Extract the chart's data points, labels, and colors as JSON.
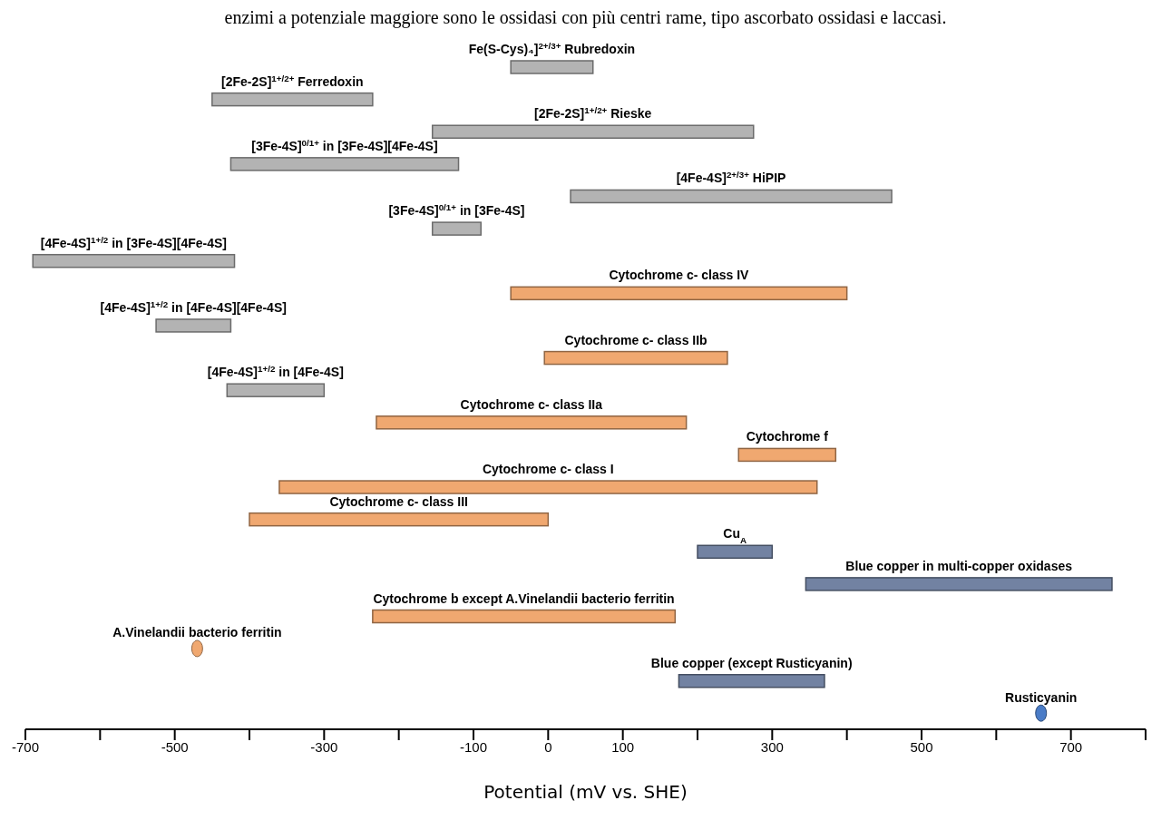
{
  "chart_data": {
    "type": "bar",
    "orientation": "horizontal",
    "xlabel": "Potential (mV vs. SHE)",
    "annotations": [
      "enzimi a potenziale maggiore sono le ossidasi con più centri rame, tipo ascorbato ossidasi e laccasi."
    ],
    "categories": [
      "Fe(S-Cys)₄]$^{2+/3+}$ Rubredoxin",
      "[2Fe-2S]$^{1+/2+}$ Ferredoxin",
      "[2Fe-2S]$^{1+/2+}$ Rieske",
      "[3Fe-4S]$^{0/1+}$ in [3Fe-4S][4Fe-4S]",
      "[4Fe-4S]$^{2+/3+}$ HiPIP",
      "[3Fe-4S]$^{0/1+}$ in [3Fe-4S]",
      "[4Fe-4S]$^{1+/2}$ in [3Fe-4S][4Fe-4S]",
      "Cytochrome c- class IV",
      "[4Fe-4S]$^{1+/2}$ in [4Fe-4S][4Fe-4S]",
      "Cytochrome c- class IIb",
      "[4Fe-4S]$^{1+/2}$ in [4Fe-4S]",
      "Cytochrome c- class IIa",
      "Cytochrome f",
      "Cytochrome c- class I",
      "Cytochrome c- class III",
      "Cu$_{A}$",
      "Blue copper in multi-copper oxidases",
      "Cytochrome b except A.Vinelandii bacterio ferritin",
      "A.Vinelandii bacterio ferritin",
      "Blue copper (except Rusticyanin)",
      "Rusticyanin"
    ],
    "series": [
      {
        "type": "bar",
        "base": [
          -50,
          -450,
          -155,
          -425,
          30,
          -155,
          -690,
          -50,
          -525,
          -5,
          -430,
          -230,
          255,
          -360,
          -400,
          200,
          345,
          -235,
          null,
          175,
          null
        ],
        "values": [
          110,
          215,
          430,
          305,
          430,
          65,
          270,
          450,
          100,
          245,
          130,
          415,
          130,
          720,
          400,
          100,
          410,
          405,
          null,
          195,
          null
        ],
        "colors": [
          "#b3b3b3",
          "#b3b3b3",
          "#b3b3b3",
          "#b3b3b3",
          "#b3b3b3",
          "#b3b3b3",
          "#b3b3b3",
          "#f0a870",
          "#b3b3b3",
          "#f0a870",
          "#b3b3b3",
          "#f0a870",
          "#f0a870",
          "#f0a870",
          "#f0a870",
          "#7282a2",
          "#7282a2",
          "#f0a870",
          null,
          "#7282a2",
          null
        ]
      },
      {
        "type": "scatter",
        "values": [
          null,
          null,
          null,
          null,
          null,
          null,
          null,
          null,
          null,
          null,
          null,
          null,
          null,
          null,
          null,
          null,
          null,
          null,
          -470,
          null,
          660
        ],
        "colors": [
          null,
          null,
          null,
          null,
          null,
          null,
          null,
          null,
          null,
          null,
          null,
          null,
          null,
          null,
          null,
          null,
          null,
          null,
          "#f0a870",
          null,
          "#4a7cc7"
        ]
      }
    ],
    "xlim": [
      -700,
      800
    ],
    "xticks": [
      -700,
      {
        "value": -600,
        "label": null
      },
      -500,
      {
        "value": -400,
        "label": null
      },
      -300,
      {
        "value": -200,
        "label": null
      },
      -100,
      0,
      100,
      {
        "value": 200,
        "label": null
      },
      300,
      {
        "value": 400,
        "label": null
      },
      500,
      {
        "value": 600,
        "label": null
      },
      700,
      {
        "value": 800,
        "label": null
      }
    ],
    "tick_labels": "x",
    "grid": false,
    "legend": false
  }
}
